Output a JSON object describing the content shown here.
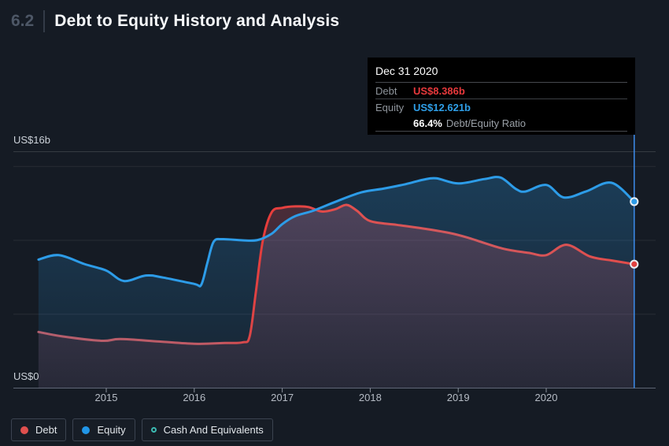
{
  "header": {
    "section_number": "6.2",
    "title": "Debt to Equity History and Analysis"
  },
  "axis": {
    "y_top_label": "US$16b",
    "y_bottom_label": "US$0"
  },
  "tooltip": {
    "date": "Dec 31 2020",
    "rows": [
      {
        "label": "Debt",
        "value": "US$8.386b",
        "color": "#e8393c"
      },
      {
        "label": "Equity",
        "value": "US$12.621b",
        "color": "#2f9fe8"
      }
    ],
    "ratio_value": "66.4%",
    "ratio_label": "Debt/Equity Ratio"
  },
  "legend": {
    "items": [
      {
        "label": "Debt",
        "color": "#e0504e",
        "style": "filled"
      },
      {
        "label": "Equity",
        "color": "#2196e8",
        "style": "filled"
      },
      {
        "label": "Cash And Equivalents",
        "color": "#3cbab2",
        "style": "ring"
      }
    ]
  },
  "colors": {
    "background": "#151b24",
    "debt_line": "#e0504e",
    "equity_line": "#2d9ce8",
    "crosshair": "#3d8ced",
    "marker_ring": "#e9eef3",
    "baseline": "#5d6673"
  },
  "chart_data": {
    "type": "area",
    "title": "Debt to Equity History and Analysis",
    "y_axis": {
      "unit": "US$ billions",
      "range": [
        0,
        16
      ],
      "gridline_values": [
        16,
        15,
        10,
        5,
        0
      ],
      "labeled_values": {
        "16": "US$16b",
        "0": "US$0"
      }
    },
    "x_axis": {
      "range": [
        2014.23,
        2021.0
      ],
      "tick_years": [
        "2015",
        "2016",
        "2017",
        "2018",
        "2019",
        "2020"
      ]
    },
    "crosshair": {
      "x": 2021.0,
      "date": "Dec 31 2020",
      "debt_value_b": 8.386,
      "equity_value_b": 12.621,
      "debt_equity_ratio_pct": 66.4
    },
    "series": [
      {
        "name": "Debt",
        "color": "#e0504e",
        "points": [
          [
            2014.23,
            3.8
          ],
          [
            2014.5,
            3.5
          ],
          [
            2014.95,
            3.2
          ],
          [
            2015.16,
            3.32
          ],
          [
            2015.6,
            3.15
          ],
          [
            2016.0,
            3.0
          ],
          [
            2016.35,
            3.05
          ],
          [
            2016.55,
            3.1
          ],
          [
            2016.63,
            3.5
          ],
          [
            2016.7,
            6.5
          ],
          [
            2016.78,
            10.0
          ],
          [
            2016.88,
            11.9
          ],
          [
            2017.0,
            12.2
          ],
          [
            2017.15,
            12.3
          ],
          [
            2017.3,
            12.25
          ],
          [
            2017.45,
            11.95
          ],
          [
            2017.6,
            12.1
          ],
          [
            2017.73,
            12.4
          ],
          [
            2017.85,
            12.0
          ],
          [
            2018.0,
            11.3
          ],
          [
            2018.3,
            11.05
          ],
          [
            2018.6,
            10.8
          ],
          [
            2018.9,
            10.5
          ],
          [
            2019.1,
            10.2
          ],
          [
            2019.5,
            9.45
          ],
          [
            2019.8,
            9.15
          ],
          [
            2020.0,
            9.0
          ],
          [
            2020.23,
            9.7
          ],
          [
            2020.5,
            8.9
          ],
          [
            2020.74,
            8.64
          ],
          [
            2021.0,
            8.386
          ]
        ],
        "end_label": "US$8.386b"
      },
      {
        "name": "Equity",
        "color": "#2d9ce8",
        "points": [
          [
            2014.23,
            8.7
          ],
          [
            2014.46,
            9.0
          ],
          [
            2014.75,
            8.4
          ],
          [
            2015.0,
            7.95
          ],
          [
            2015.2,
            7.25
          ],
          [
            2015.45,
            7.62
          ],
          [
            2015.65,
            7.48
          ],
          [
            2016.0,
            7.05
          ],
          [
            2016.08,
            7.0
          ],
          [
            2016.15,
            8.5
          ],
          [
            2016.22,
            9.9
          ],
          [
            2016.32,
            10.08
          ],
          [
            2016.55,
            10.0
          ],
          [
            2016.72,
            10.02
          ],
          [
            2016.88,
            10.45
          ],
          [
            2017.0,
            11.1
          ],
          [
            2017.15,
            11.65
          ],
          [
            2017.35,
            12.0
          ],
          [
            2017.6,
            12.6
          ],
          [
            2017.9,
            13.25
          ],
          [
            2018.15,
            13.5
          ],
          [
            2018.4,
            13.8
          ],
          [
            2018.6,
            14.1
          ],
          [
            2018.75,
            14.2
          ],
          [
            2019.0,
            13.85
          ],
          [
            2019.3,
            14.15
          ],
          [
            2019.48,
            14.25
          ],
          [
            2019.65,
            13.5
          ],
          [
            2019.76,
            13.3
          ],
          [
            2020.0,
            13.75
          ],
          [
            2020.2,
            12.9
          ],
          [
            2020.45,
            13.3
          ],
          [
            2020.74,
            13.9
          ],
          [
            2021.0,
            12.621
          ]
        ],
        "end_label": "US$12.621b"
      }
    ],
    "legend_position": "bottom-left",
    "grid": true
  }
}
